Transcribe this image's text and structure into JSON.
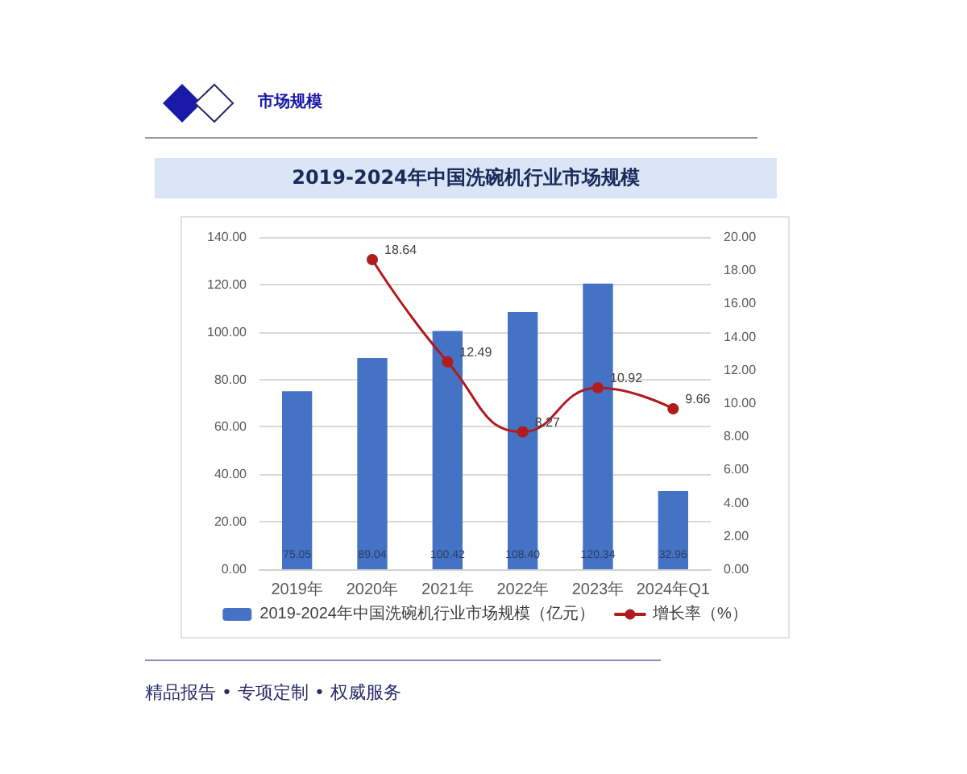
{
  "chart_data": {
    "type": "bar",
    "title": "2019-2024年中国洗碗机行业市场规模",
    "annotations": [
      "市场规模",
      "精品报告 • 专项定制 • 权威服务"
    ],
    "categories": [
      "2019年",
      "2020年",
      "2021年",
      "2022年",
      "2023年",
      "2024年Q1"
    ],
    "series": [
      {
        "name": "2019-2024年中国洗碗机行业市场规模（亿元）",
        "color": "#4472c4",
        "values": [
          75.05,
          89.04,
          100.42,
          108.4,
          120.34,
          32.96
        ],
        "value_labels": [
          "75.05",
          "89.04",
          "100.42",
          "108.40",
          "120.34",
          "32.96"
        ]
      },
      {
        "name": "增长率（%）",
        "type": "line",
        "axis": "y2",
        "color": "#b01c1c",
        "values": [
          null,
          18.64,
          12.49,
          8.27,
          10.92,
          9.66
        ],
        "value_labels": [
          null,
          "18.64",
          "12.49",
          "8.27",
          "10.92",
          "9.66"
        ]
      }
    ],
    "ylim": [
      0,
      140
    ],
    "yticks": [
      {
        "value": 0,
        "label": "0.00"
      },
      {
        "value": 20,
        "label": "20.00"
      },
      {
        "value": 40,
        "label": "40.00"
      },
      {
        "value": 60,
        "label": "60.00"
      },
      {
        "value": 80,
        "label": "80.00"
      },
      {
        "value": 100,
        "label": "100.00"
      },
      {
        "value": 120,
        "label": "120.00"
      },
      {
        "value": 140,
        "label": "140.00"
      }
    ],
    "y2lim": [
      0,
      20
    ],
    "y2ticks": [
      {
        "value": 0,
        "label": "0.00"
      },
      {
        "value": 2,
        "label": "2.00"
      },
      {
        "value": 4,
        "label": "4.00"
      },
      {
        "value": 6,
        "label": "6.00"
      },
      {
        "value": 8,
        "label": "8.00"
      },
      {
        "value": 10,
        "label": "10.00"
      },
      {
        "value": 12,
        "label": "12.00"
      },
      {
        "value": 14,
        "label": "14.00"
      },
      {
        "value": 16,
        "label": "16.00"
      },
      {
        "value": 18,
        "label": "18.00"
      },
      {
        "value": 20,
        "label": "20.00"
      }
    ],
    "grid": "y",
    "legend": "bottom",
    "marker": "circle",
    "line_style": "solid"
  }
}
